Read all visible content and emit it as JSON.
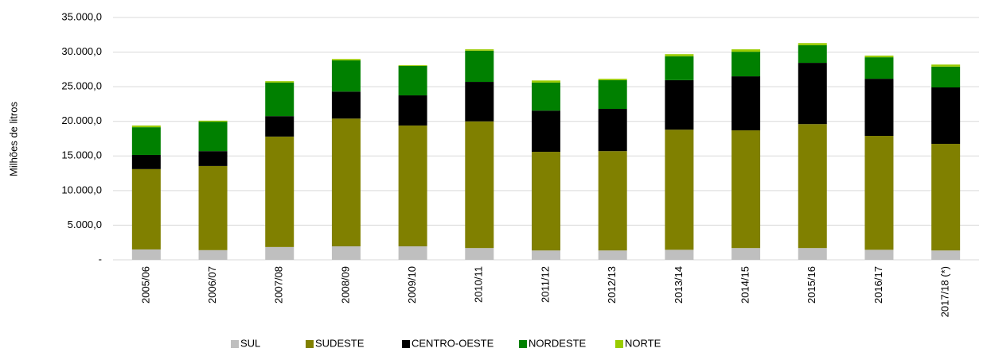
{
  "chart_data": {
    "type": "stacked_bar",
    "y_label": "Milhões de litros",
    "categories": [
      "2005/06",
      "2006/07",
      "2007/08",
      "2008/09",
      "2009/10",
      "2010/11",
      "2011/12",
      "2012/13",
      "2013/14",
      "2014/15",
      "2015/16",
      "2016/17",
      "2017/18 (*)"
    ],
    "series": [
      {
        "name": "SUL",
        "color": "#bfbfbf",
        "values": [
          1500,
          1400,
          1850,
          1950,
          1950,
          1700,
          1350,
          1350,
          1450,
          1700,
          1700,
          1450,
          1350
        ]
      },
      {
        "name": "SUDESTE",
        "color": "#808000",
        "values": [
          11600,
          12150,
          15950,
          18450,
          17450,
          18300,
          14250,
          14350,
          17350,
          17000,
          17900,
          16450,
          15400
        ]
      },
      {
        "name": "CENTRO-OESTE",
        "color": "#000000",
        "values": [
          2050,
          2150,
          2950,
          3900,
          4350,
          5700,
          5950,
          6100,
          7150,
          7800,
          8850,
          8250,
          8150
        ]
      },
      {
        "name": "NORDESTE",
        "color": "#008000",
        "values": [
          4000,
          4250,
          4850,
          4500,
          4250,
          4500,
          4050,
          4150,
          3450,
          3550,
          2550,
          3100,
          3000
        ]
      },
      {
        "name": "NORTE",
        "color": "#99cc00",
        "values": [
          250,
          150,
          200,
          200,
          100,
          200,
          300,
          200,
          300,
          350,
          300,
          250,
          300
        ]
      }
    ],
    "ylim": [
      0,
      35000
    ],
    "yticks": [
      {
        "value": 0,
        "label": "-"
      },
      {
        "value": 5000,
        "label": "5.000,0"
      },
      {
        "value": 10000,
        "label": "10.000,0"
      },
      {
        "value": 15000,
        "label": "15.000,0"
      },
      {
        "value": 20000,
        "label": "20.000,0"
      },
      {
        "value": 25000,
        "label": "25.000,0"
      },
      {
        "value": 30000,
        "label": "30.000,0"
      },
      {
        "value": 35000,
        "label": "35.000,0"
      }
    ],
    "grid": true,
    "legend": "bottom"
  }
}
